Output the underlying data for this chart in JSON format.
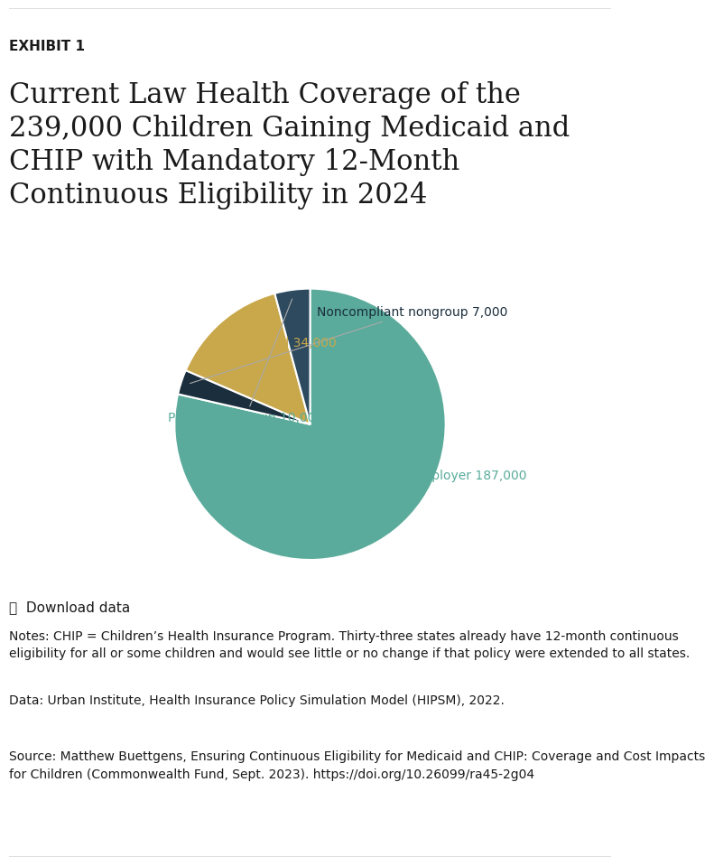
{
  "title_label": "EXHIBIT 1",
  "title": "Current Law Health Coverage of the\n239,000 Children Gaining Medicaid and\nCHIP with Mandatory 12-Month\nContinuous Eligibility in 2024",
  "slices": [
    187000,
    34000,
    10000,
    7000
  ],
  "slice_labels": [
    "Employer 187,000",
    "Uninsured 34,000",
    "Private nongroup 10,000",
    "Noncompliant nongroup 7,000"
  ],
  "slice_colors": [
    "#5aab9b",
    "#c8a84b",
    "#2d4a5e",
    "#1a2e3d"
  ],
  "label_colors": [
    "#5aab9b",
    "#c8a84b",
    "#5aab9b",
    "#1a2e3d"
  ],
  "startangle": 90,
  "notes_text": "Notes: CHIP = Children’s Health Insurance Program. Thirty-three states already have 12-month continuous\neligibility for all or some children and would see little or no change if that policy were extended to all states.",
  "data_text": "Data: Urban Institute, Health Insurance Policy Simulation Model (HIPSM), 2022.",
  "source_text_regular": "Source: Matthew Buettgens, ",
  "source_text_italic": "Ensuring Continuous Eligibility for Medicaid and CHIP: Coverage and Cost Impacts\nfor Children",
  "source_text_regular2": " (Commonwealth Fund, Sept. 2023). ",
  "source_url": "https://doi.org/10.26099/ra45-2g04",
  "download_text": "Download data",
  "bg_color": "#ffffff",
  "text_color": "#1a1a1a",
  "line_color": "#5a5a5a"
}
